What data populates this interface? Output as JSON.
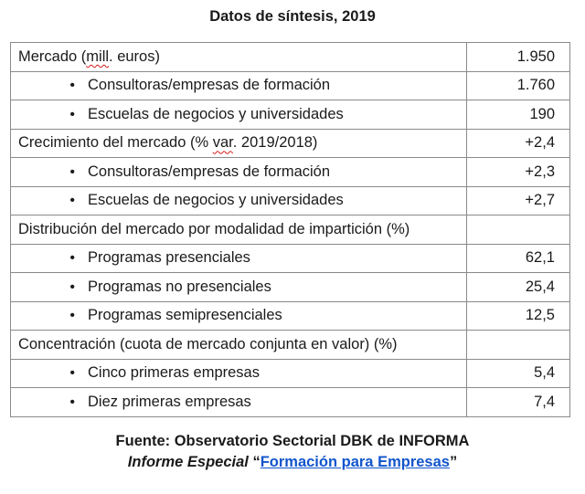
{
  "title": "Datos de síntesis, 2019",
  "rows": [
    {
      "label_pre": "Mercado (",
      "label_sq": "mill",
      "label_post": ". euros)",
      "value": "1.950",
      "bullet": false
    },
    {
      "label": "Consultoras/empresas de formación",
      "value": "1.760",
      "bullet": true
    },
    {
      "label": "Escuelas de negocios y universidades",
      "value": "190",
      "bullet": true
    },
    {
      "label_pre": "Crecimiento del mercado (% ",
      "label_sq": "var",
      "label_post": ". 2019/2018)",
      "value": "+2,4",
      "bullet": false
    },
    {
      "label": "Consultoras/empresas de formación",
      "value": "+2,3",
      "bullet": true
    },
    {
      "label": "Escuelas de negocios y universidades",
      "value": "+2,7",
      "bullet": true
    },
    {
      "label": "Distribución del mercado por modalidad de impartición (%)",
      "value": "",
      "bullet": false
    },
    {
      "label": "Programas presenciales",
      "value": "62,1",
      "bullet": true
    },
    {
      "label": "Programas no presenciales",
      "value": "25,4",
      "bullet": true
    },
    {
      "label": "Programas semipresenciales",
      "value": "12,5",
      "bullet": true
    },
    {
      "label": "Concentración (cuota de mercado conjunta en valor) (%)",
      "value": "",
      "bullet": false
    },
    {
      "label": "Cinco primeras empresas",
      "value": "5,4",
      "bullet": true
    },
    {
      "label": "Diez primeras empresas",
      "value": "7,4",
      "bullet": true
    }
  ],
  "bullet_glyph": "•",
  "footer": {
    "line1": "Fuente: Observatorio Sectorial DBK de INFORMA",
    "line2_italic": "Informe Especial",
    "open_quote": "“",
    "link_text": "Formación para Empresas",
    "close_quote": "”"
  },
  "colors": {
    "link": "#1155cc",
    "spellcheck": "#d11a1a",
    "border": "#8a8a8a"
  }
}
